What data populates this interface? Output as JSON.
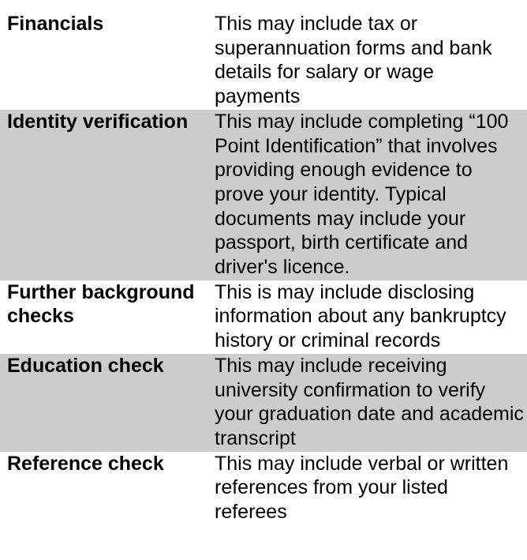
{
  "rows": [
    {
      "term": "Financials",
      "description": "This may include tax or superannuation forms and bank details for salary or wage payments"
    },
    {
      "term": "Identity verification",
      "description": "This may include completing “100 Point Identification” that involves providing enough evidence to prove your identity. Typical documents may include your passport, birth certificate and driver's licence."
    },
    {
      "term": "Further background checks",
      "description": "This is may include disclosing information about any bankruptcy history or criminal records"
    },
    {
      "term": "Education check",
      "description": "This may include receiving university confirmation to verify your graduation date and academic transcript"
    },
    {
      "term": "Reference check",
      "description": "This may include verbal or written references from your listed referees"
    }
  ],
  "colors": {
    "shaded_row": "#cccccc",
    "plain_row": "#ffffff",
    "text": "#000000"
  }
}
